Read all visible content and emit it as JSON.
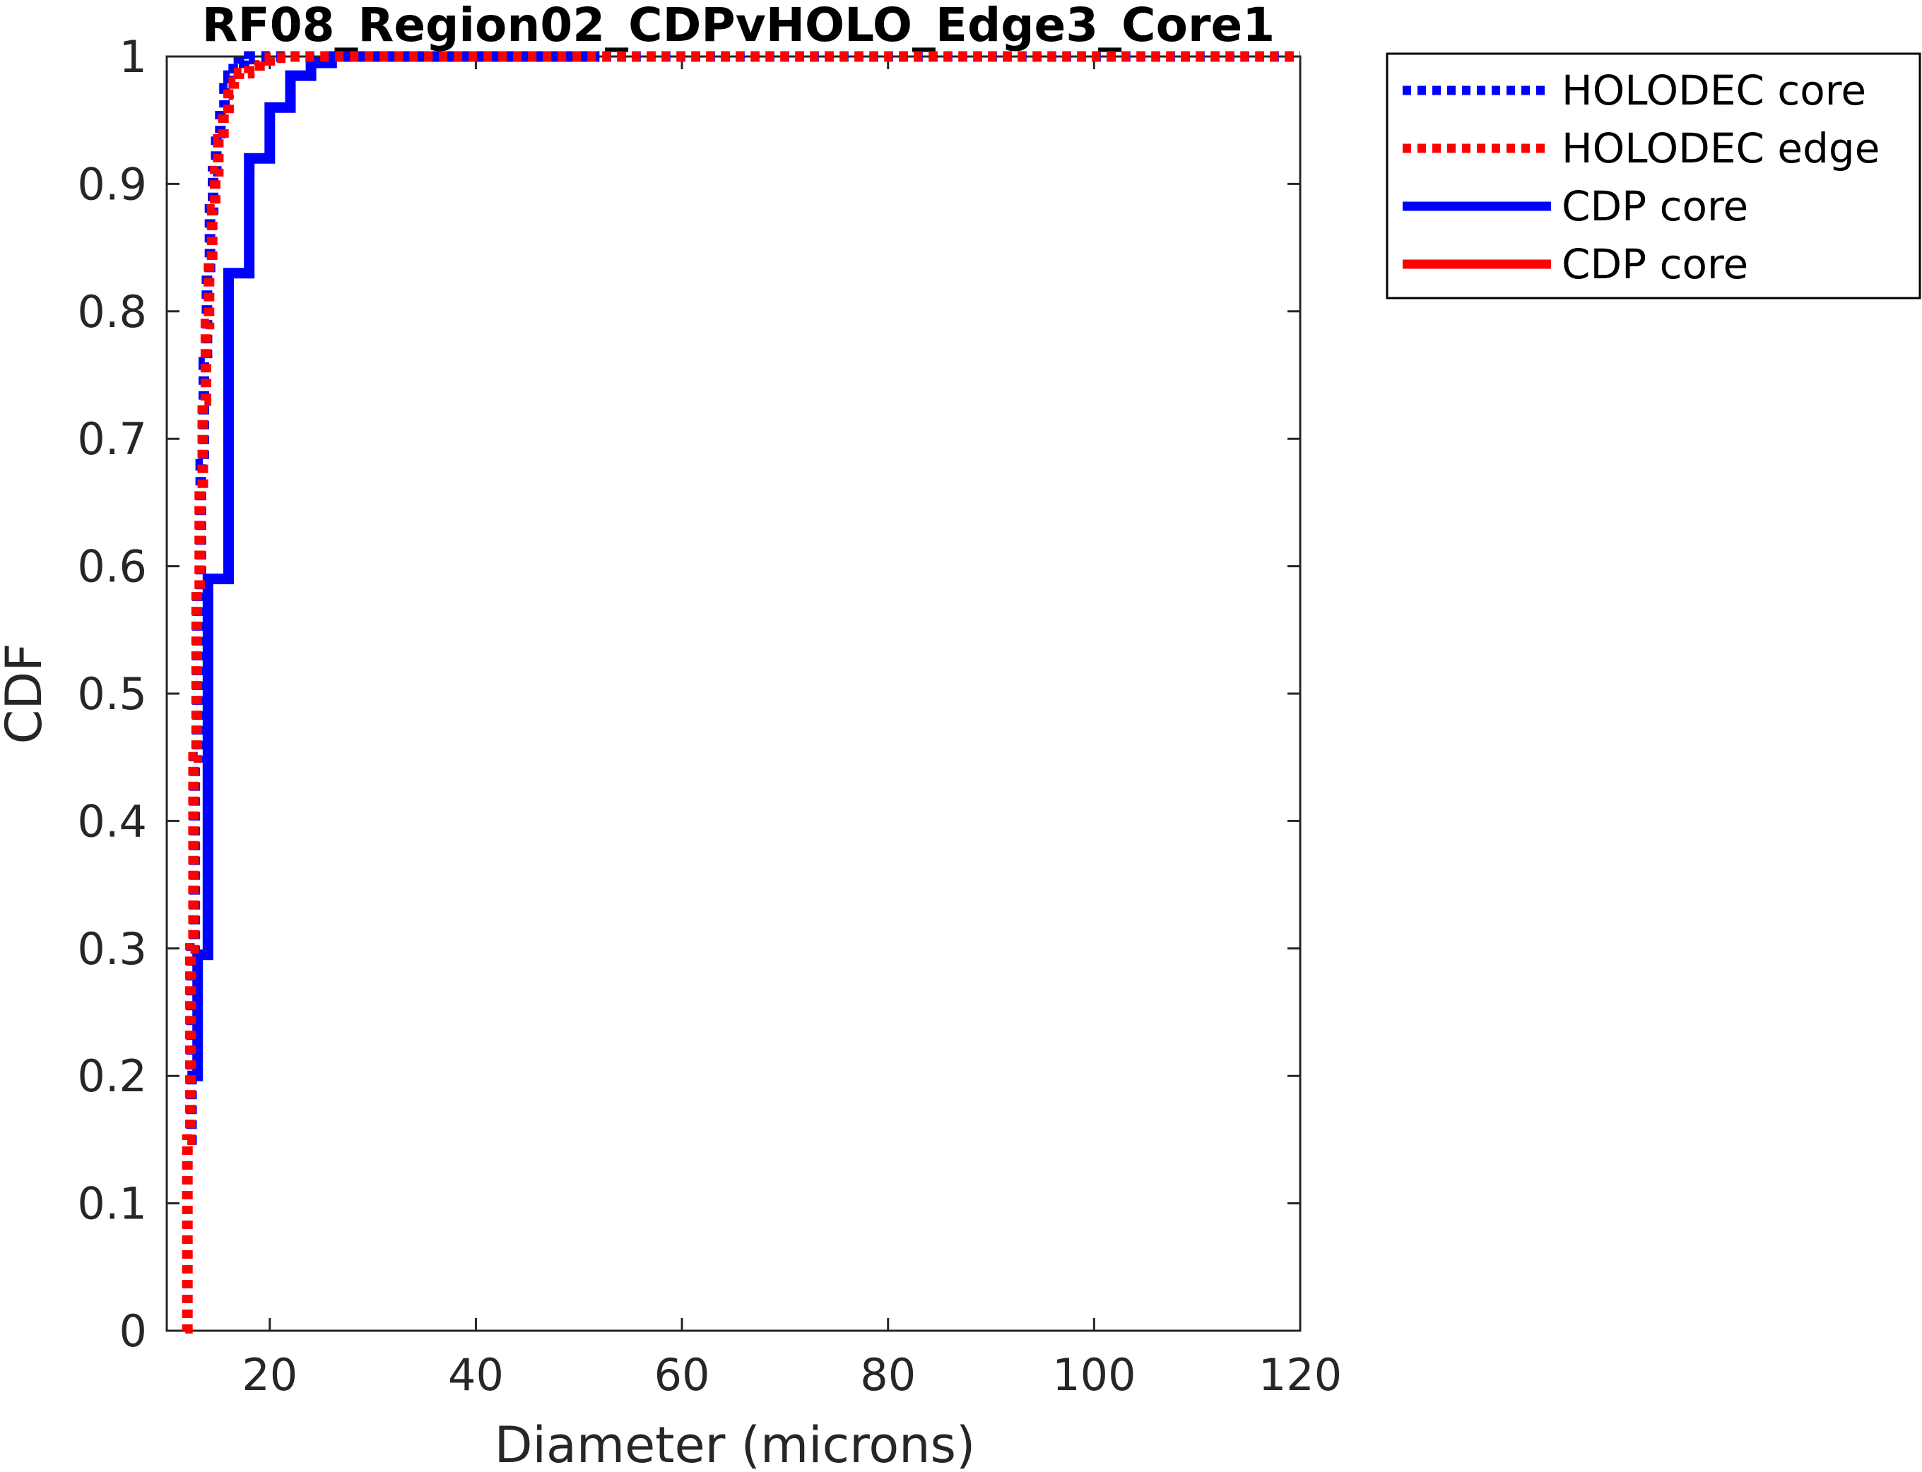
{
  "chart_data": {
    "type": "line",
    "title": "RF08_Region02_CDPvHOLO_Edge3_Core1",
    "xlabel": "Diameter (microns)",
    "ylabel": "CDF",
    "xlim": [
      10,
      120
    ],
    "ylim": [
      0,
      1
    ],
    "xticks": [
      "20",
      "40",
      "60",
      "80",
      "100",
      "120"
    ],
    "yticks": [
      "0",
      "0.1",
      "0.2",
      "0.3",
      "0.4",
      "0.5",
      "0.6",
      "0.7",
      "0.8",
      "0.9",
      "1"
    ],
    "grid": false,
    "legend_position": "outside-top-right",
    "series": [
      {
        "name": "HOLODEC core",
        "color": "#0000ff",
        "style": "dotted",
        "x": [
          12.0,
          12.4,
          12.7,
          13.0,
          13.3,
          13.6,
          13.9,
          14.2,
          14.5,
          14.8,
          15.2,
          15.6,
          16.0,
          16.5,
          17.0,
          17.5,
          18.0,
          19.0,
          20.0,
          120.0
        ],
        "y": [
          0.15,
          0.3,
          0.45,
          0.58,
          0.68,
          0.76,
          0.83,
          0.88,
          0.91,
          0.94,
          0.96,
          0.975,
          0.985,
          0.99,
          0.995,
          0.998,
          1.0,
          1.0,
          1.0,
          1.0
        ]
      },
      {
        "name": "HOLODEC edge",
        "color": "#ff0000",
        "style": "dotted",
        "x": [
          11.8,
          12.0,
          12.3,
          12.6,
          12.9,
          13.2,
          13.5,
          13.8,
          14.1,
          14.4,
          14.7,
          15.0,
          15.5,
          16.0,
          16.5,
          17.0,
          18.0,
          19.0,
          20.0,
          22.0,
          25.0,
          120.0
        ],
        "y": [
          0.0,
          0.15,
          0.3,
          0.45,
          0.58,
          0.66,
          0.73,
          0.79,
          0.84,
          0.88,
          0.91,
          0.935,
          0.955,
          0.97,
          0.98,
          0.987,
          0.993,
          0.997,
          0.999,
          1.0,
          1.0,
          1.0
        ]
      },
      {
        "name": "CDP core",
        "color": "#0000ff",
        "style": "solid",
        "x": [
          12.0,
          13.0,
          14.0,
          16.0,
          18.0,
          20.0,
          22.0,
          24.0,
          26.0,
          28.0,
          30.0,
          52.0
        ],
        "y": [
          0.2,
          0.295,
          0.59,
          0.83,
          0.92,
          0.96,
          0.985,
          0.995,
          1.0,
          1.0,
          1.0,
          1.0
        ]
      },
      {
        "name": "CDP core",
        "color": "#ff0000",
        "style": "solid",
        "x": [],
        "y": []
      }
    ]
  }
}
